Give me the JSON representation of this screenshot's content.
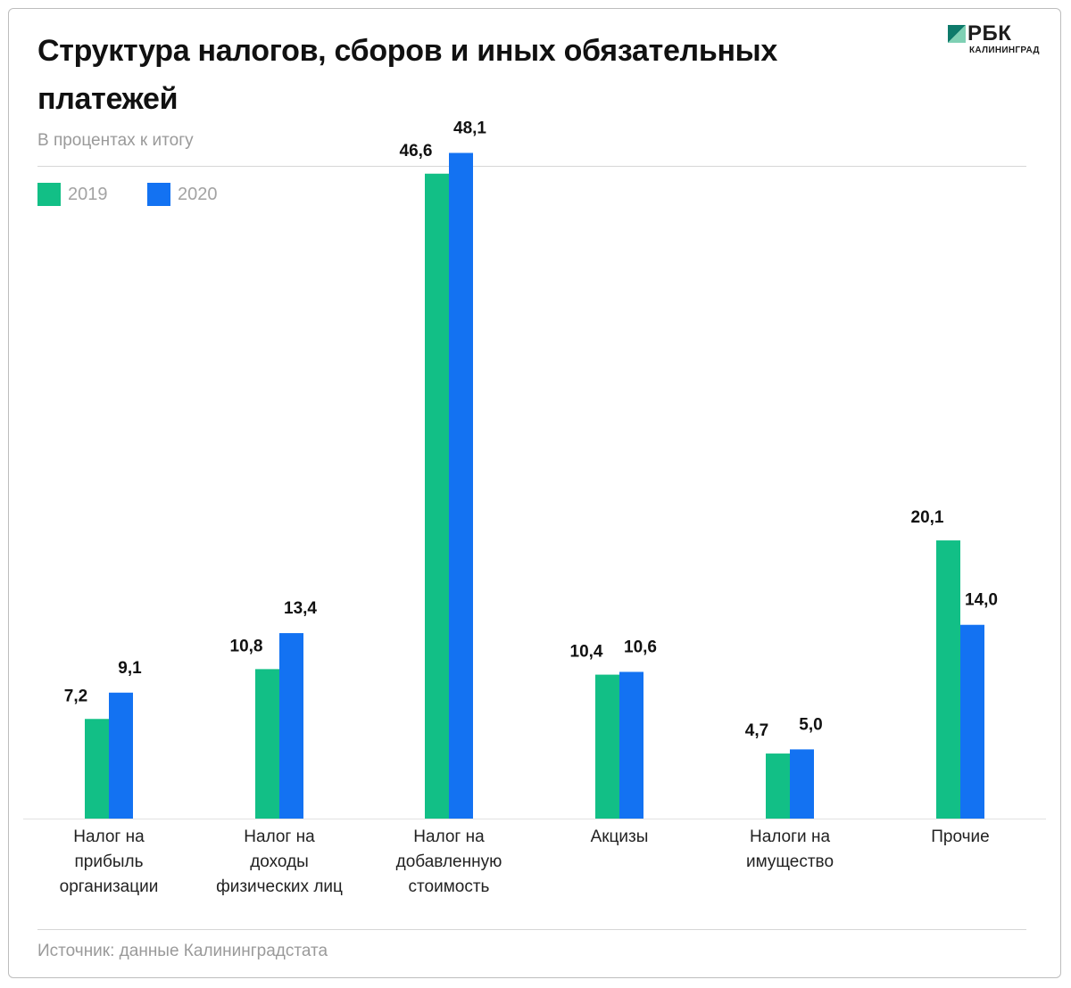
{
  "header": {
    "title": "Структура налогов, сборов и иных обязательных платежей",
    "subtitle": "В процентах к итогу"
  },
  "logo": {
    "wordmark": "РБК",
    "region": "КАЛИНИНГРАД"
  },
  "colors": {
    "series_2019": "#12bf86",
    "series_2020": "#1372f2",
    "logo_mark": "#0e7a6b"
  },
  "footer": {
    "source": "Источник: данные Калининградстата"
  },
  "chart_data": {
    "type": "bar",
    "title": "Структура налогов, сборов и иных обязательных платежей",
    "subtitle": "В процентах к итогу",
    "xlabel": "",
    "ylabel": "",
    "ylim": [
      0,
      50
    ],
    "grid": false,
    "legend_position": "top-left",
    "categories": [
      [
        "Налог на",
        "прибыль",
        "организации"
      ],
      [
        "Налог на",
        "доходы",
        "физических лиц"
      ],
      [
        "Налог на",
        "добавленную",
        "стоимость"
      ],
      [
        "Акцизы"
      ],
      [
        "Налоги на",
        "имущество"
      ],
      [
        "Прочие"
      ]
    ],
    "series": [
      {
        "name": "2019",
        "color": "#12bf86",
        "values": [
          7.2,
          10.8,
          46.6,
          10.4,
          4.7,
          20.1
        ],
        "labels": [
          "7,2",
          "10,8",
          "46,6",
          "10,4",
          "4,7",
          "20,1"
        ]
      },
      {
        "name": "2020",
        "color": "#1372f2",
        "values": [
          9.1,
          13.4,
          48.1,
          10.6,
          5.0,
          14.0
        ],
        "labels": [
          "9,1",
          "13,4",
          "48,1",
          "10,6",
          "5,0",
          "14,0"
        ]
      }
    ]
  }
}
